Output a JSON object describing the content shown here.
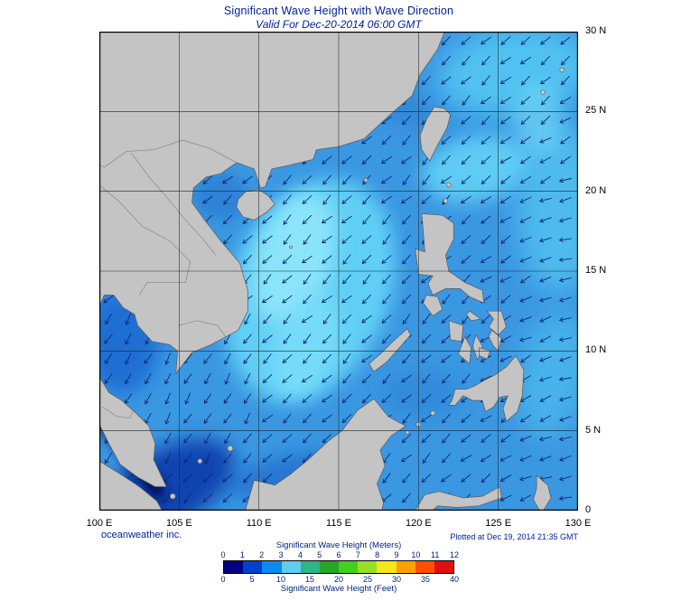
{
  "title": "Significant Wave Height with Wave Direction",
  "subtitle": "Valid For Dec-20-2014 06:00 GMT",
  "footer": {
    "source": "oceanweather inc.",
    "plotted": "Plotted at Dec 19, 2014 21:35 GMT"
  },
  "axes": {
    "lat": [
      "30 N",
      "25 N",
      "20 N",
      "15 N",
      "10 N",
      "5 N",
      "0"
    ],
    "lon": [
      "100 E",
      "105 E",
      "110 E",
      "115 E",
      "120 E",
      "125 E",
      "130 E"
    ]
  },
  "legend": {
    "meters_label": "Significant Wave Height (Meters)",
    "feet_label": "Significant Wave Height (Feet)",
    "meters_ticks": [
      "0",
      "1",
      "2",
      "3",
      "4",
      "5",
      "6",
      "7",
      "8",
      "9",
      "10",
      "11",
      "12"
    ],
    "feet_ticks": [
      "0",
      "5",
      "10",
      "15",
      "20",
      "25",
      "30",
      "35",
      "40"
    ],
    "band_colors": [
      "#000080",
      "#0040CC",
      "#1088EE",
      "#60CCF2",
      "#30B488",
      "#28A428",
      "#40D020",
      "#98E024",
      "#F5E61E",
      "#FFA000",
      "#FF5000",
      "#E01010"
    ]
  },
  "map_colors": {
    "ocean_base": "#3A97E2",
    "land": "#C4C4C4",
    "coast": "#5A5A5A",
    "arrow": "#0B2B6E",
    "grid": "#222222"
  }
}
